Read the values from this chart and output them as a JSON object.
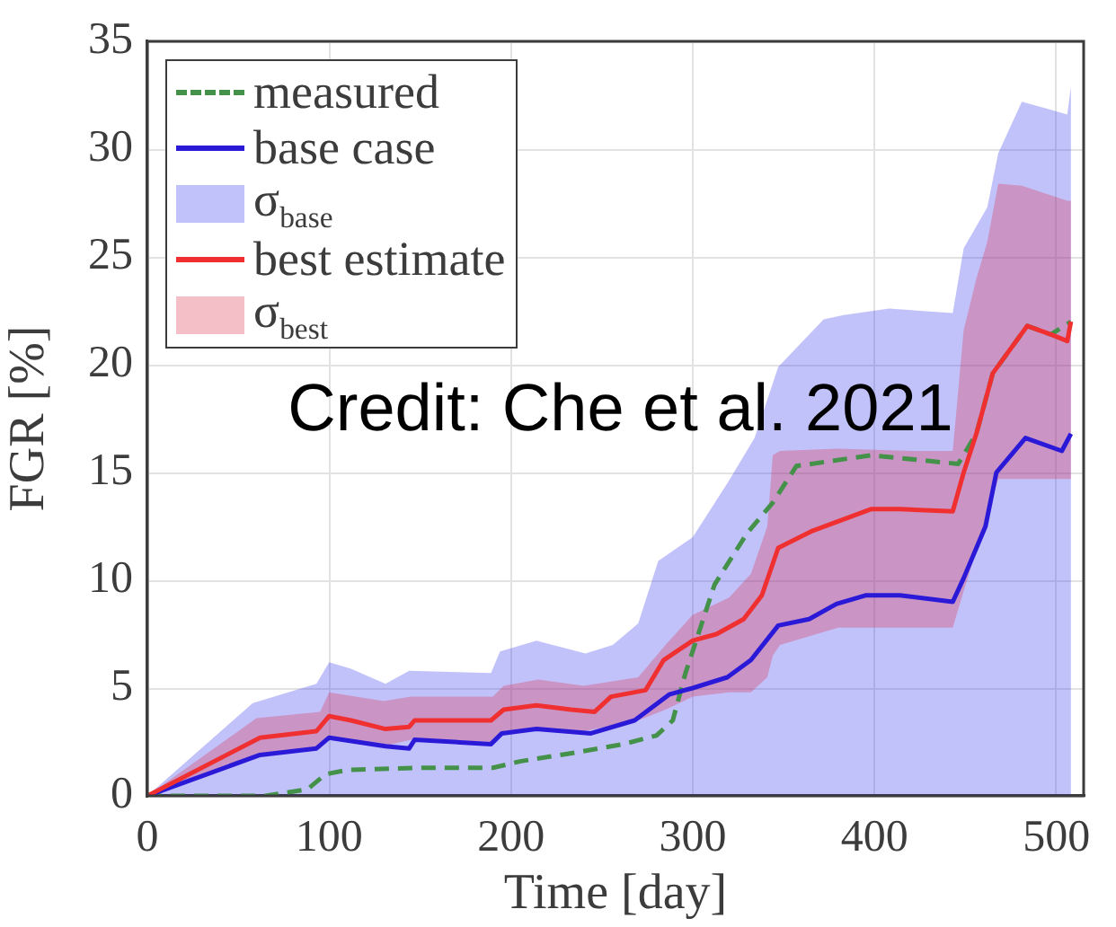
{
  "chart_data": {
    "type": "line",
    "xlabel": "Time [day]",
    "ylabel": "FGR [%]",
    "annotations": [
      "Credit: Che et al. 2021"
    ],
    "xlim": [
      0,
      515
    ],
    "xticks": [
      0,
      100,
      200,
      300,
      400,
      500
    ],
    "ylim": [
      0,
      35
    ],
    "yticks": [
      0,
      5,
      10,
      15,
      20,
      25,
      30,
      35
    ],
    "grid": true,
    "legend": "top left",
    "marker": "none",
    "series": [
      {
        "name": "measured",
        "type": "line",
        "line_style": "dashed",
        "color": "#44914a",
        "x": [
          0,
          65,
          88,
          98,
          110,
          150,
          190,
          205,
          235,
          262,
          280,
          289,
          296,
          312,
          330,
          344,
          357,
          398,
          446,
          456,
          465,
          484,
          497,
          508
        ],
        "values": [
          0,
          0,
          0.3,
          1.0,
          1.2,
          1.3,
          1.3,
          1.6,
          2.0,
          2.4,
          2.8,
          3.5,
          5.7,
          9.8,
          12.2,
          13.6,
          15.3,
          15.8,
          15.4,
          16.8,
          19.6,
          21.8,
          21.4,
          22.0
        ]
      },
      {
        "name": "base case",
        "type": "line",
        "line_style": "solid",
        "color": "#2a1ad8",
        "x": [
          0,
          62,
          93,
          100,
          131,
          144,
          147,
          189,
          195,
          214,
          244,
          268,
          287,
          300,
          319,
          332,
          347,
          364,
          379,
          395,
          414,
          443,
          449,
          461,
          467,
          483,
          503,
          508
        ],
        "values": [
          0,
          1.9,
          2.2,
          2.7,
          2.3,
          2.2,
          2.6,
          2.4,
          2.9,
          3.1,
          2.9,
          3.5,
          4.7,
          5.0,
          5.5,
          6.3,
          7.9,
          8.2,
          8.9,
          9.3,
          9.3,
          9.0,
          10.1,
          12.5,
          15.0,
          16.6,
          16.0,
          16.8
        ]
      },
      {
        "name": "σ$_{base}$",
        "type": "area",
        "color": "#c2c2fb",
        "x": [
          0,
          58,
          93,
          100,
          112,
          131,
          144,
          189,
          194,
          214,
          241,
          256,
          270,
          281,
          300,
          319,
          334,
          347,
          372,
          383,
          408,
          443,
          449,
          462,
          468,
          481,
          494,
          506,
          508
        ],
        "values": [
          0,
          4.3,
          5.2,
          6.2,
          5.9,
          5.2,
          5.8,
          5.7,
          6.7,
          7.2,
          6.6,
          7.0,
          8.0,
          10.9,
          12.0,
          14.5,
          16.6,
          19.9,
          22.1,
          22.3,
          22.6,
          22.4,
          25.4,
          27.3,
          29.8,
          32.2,
          31.9,
          31.6,
          32.9
        ]
      },
      {
        "name": "best estimate",
        "type": "line",
        "line_style": "solid",
        "color": "#f03030",
        "x": [
          0,
          62,
          93,
          100,
          112,
          131,
          144,
          147,
          189,
          196,
          214,
          233,
          246,
          255,
          274,
          284,
          300,
          313,
          328,
          338,
          347,
          366,
          379,
          398,
          414,
          443,
          449,
          456,
          465,
          484,
          497,
          506,
          508
        ],
        "values": [
          0,
          2.7,
          3.0,
          3.7,
          3.5,
          3.1,
          3.2,
          3.5,
          3.5,
          4.0,
          4.2,
          4.0,
          3.9,
          4.6,
          4.9,
          6.3,
          7.2,
          7.5,
          8.2,
          9.3,
          11.5,
          12.3,
          12.7,
          13.3,
          13.3,
          13.2,
          15.0,
          16.8,
          19.6,
          21.8,
          21.4,
          21.1,
          22.0
        ]
      },
      {
        "name": "σ$_{best}$",
        "type": "area",
        "color": "#f5bfc8",
        "x": [
          0,
          60,
          95,
          100,
          130,
          145,
          190,
          196,
          215,
          240,
          270,
          285,
          300,
          320,
          332,
          341,
          344,
          348,
          380,
          420,
          443,
          449,
          456,
          462,
          468,
          481,
          506,
          508
        ],
        "values": [
          null,
          null,
          null,
          null,
          null,
          null,
          null,
          null,
          null,
          null,
          null,
          null,
          null,
          null,
          null,
          null,
          null,
          null,
          null,
          null,
          null,
          null,
          null,
          null,
          null,
          null,
          null,
          null
        ],
        "lower": [
          0,
          1.9,
          2.2,
          2.7,
          2.3,
          2.6,
          2.5,
          3.0,
          3.1,
          3.0,
          3.5,
          4.0,
          4.6,
          4.8,
          4.8,
          5.5,
          6.5,
          7.0,
          7.8,
          7.8,
          7.8,
          9.5,
          11.4,
          13.0,
          14.7,
          14.7,
          14.7,
          14.7
        ],
        "upper": [
          0,
          3.6,
          3.9,
          4.8,
          4.4,
          4.6,
          4.6,
          5.1,
          5.4,
          5.1,
          5.5,
          7.0,
          8.4,
          9.2,
          10.3,
          12.5,
          15.8,
          16.0,
          16.1,
          16.0,
          16.0,
          21.6,
          24.0,
          25.7,
          28.4,
          28.3,
          27.6,
          27.6
        ]
      }
    ]
  }
}
